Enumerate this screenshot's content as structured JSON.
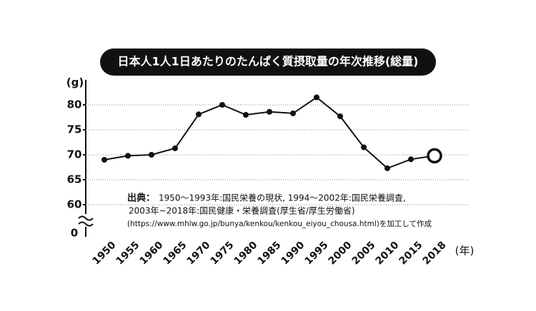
{
  "chart_data": {
    "type": "line",
    "title": "日本人1人1日あたりのたんぱく質摂取量の年次推移(総量)",
    "y_unit": "(g)",
    "x_unit": "(年)",
    "categories": [
      "1950",
      "1955",
      "1960",
      "1965",
      "1970",
      "1975",
      "1980",
      "1985",
      "1990",
      "1995",
      "2000",
      "2005",
      "2010",
      "2015",
      "2018"
    ],
    "series": [
      {
        "name": "たんぱく質摂取量",
        "color": "#111111",
        "values": [
          69.0,
          69.8,
          70.0,
          71.3,
          78.1,
          80.0,
          78.0,
          78.6,
          78.3,
          81.5,
          77.7,
          71.5,
          67.3,
          69.1,
          69.8
        ]
      }
    ],
    "ylim": [
      60,
      85
    ],
    "yticks": [
      60,
      65,
      70,
      75,
      80
    ],
    "y_break_tick": 0,
    "axis_break": true,
    "grid": true,
    "highlight_last": true,
    "source": {
      "label": "出典：",
      "lines": [
        "1950～1993年:国民栄養の現状, 1994～2002年:国民栄養調査,",
        "2003年~2018年:国民健康・栄養調査(厚生省/厚生労働省)",
        "(https://www.mhlw.go.jp/bunya/kenkou/kenkou_eiyou_chousa.html)を加工して作成"
      ]
    }
  }
}
